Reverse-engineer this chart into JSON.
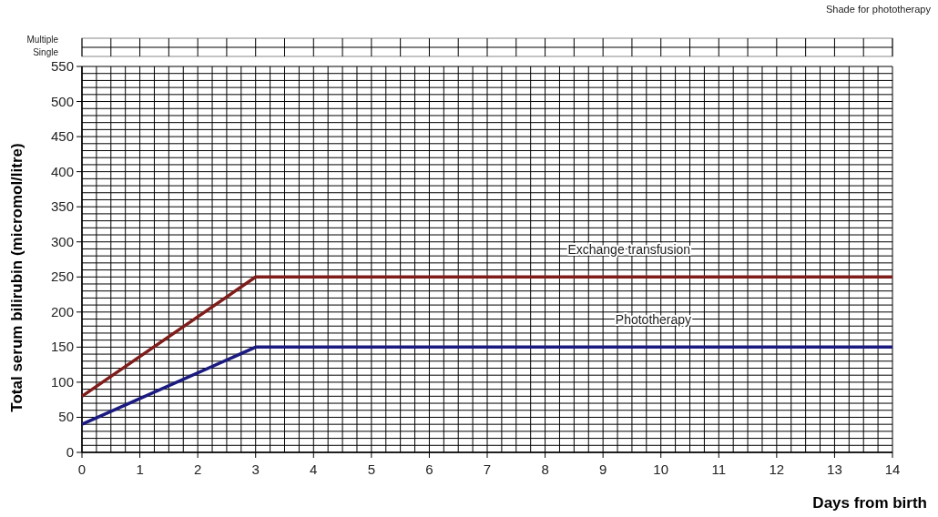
{
  "chart_data": {
    "type": "line",
    "xlabel": "Days from birth",
    "ylabel": "Total serum bilirubin  (micromol/litre)",
    "annotations": [
      "Shade for phototherapy",
      "Multiple",
      "Single"
    ],
    "x": [
      0,
      3,
      14
    ],
    "series": [
      {
        "name": "Exchange transfusion",
        "color": "#7f1d1a",
        "values": [
          80,
          250,
          250
        ]
      },
      {
        "name": "Phototherapy",
        "color": "#1a1a80",
        "values": [
          40,
          150,
          150
        ]
      }
    ],
    "xlim": [
      0,
      14
    ],
    "ylim": [
      0,
      550
    ],
    "xticks": [
      0,
      {
        "value": 0.25,
        "label": null
      },
      {
        "value": 0.5,
        "label": null
      },
      {
        "value": 0.75,
        "label": null
      },
      1,
      {
        "value": 1.25,
        "label": null
      },
      {
        "value": 1.5,
        "label": null
      },
      {
        "value": 1.75,
        "label": null
      },
      2,
      {
        "value": 2.25,
        "label": null
      },
      {
        "value": 2.5,
        "label": null
      },
      {
        "value": 2.75,
        "label": null
      },
      3,
      {
        "value": 3.25,
        "label": null
      },
      {
        "value": 3.5,
        "label": null
      },
      {
        "value": 3.75,
        "label": null
      },
      4,
      {
        "value": 4.25,
        "label": null
      },
      {
        "value": 4.5,
        "label": null
      },
      {
        "value": 4.75,
        "label": null
      },
      5,
      {
        "value": 5.25,
        "label": null
      },
      {
        "value": 5.5,
        "label": null
      },
      {
        "value": 5.75,
        "label": null
      },
      6,
      {
        "value": 6.25,
        "label": null
      },
      {
        "value": 6.5,
        "label": null
      },
      {
        "value": 6.75,
        "label": null
      },
      7,
      {
        "value": 7.25,
        "label": null
      },
      {
        "value": 7.5,
        "label": null
      },
      {
        "value": 7.75,
        "label": null
      },
      8,
      {
        "value": 8.25,
        "label": null
      },
      {
        "value": 8.5,
        "label": null
      },
      {
        "value": 8.75,
        "label": null
      },
      9,
      {
        "value": 9.25,
        "label": null
      },
      {
        "value": 9.5,
        "label": null
      },
      {
        "value": 9.75,
        "label": null
      },
      10,
      {
        "value": 10.25,
        "label": null
      },
      {
        "value": 10.5,
        "label": null
      },
      {
        "value": 10.75,
        "label": null
      },
      11,
      {
        "value": 11.25,
        "label": null
      },
      {
        "value": 11.5,
        "label": null
      },
      {
        "value": 11.75,
        "label": null
      },
      12,
      {
        "value": 12.25,
        "label": null
      },
      {
        "value": 12.5,
        "label": null
      },
      {
        "value": 12.75,
        "label": null
      },
      13,
      {
        "value": 13.25,
        "label": null
      },
      {
        "value": 13.5,
        "label": null
      },
      {
        "value": 13.75,
        "label": null
      },
      14
    ],
    "yticks": [
      0,
      {
        "value": 10,
        "label": null
      },
      {
        "value": 20,
        "label": null
      },
      {
        "value": 30,
        "label": null
      },
      {
        "value": 40,
        "label": null
      },
      50,
      {
        "value": 60,
        "label": null
      },
      {
        "value": 70,
        "label": null
      },
      {
        "value": 80,
        "label": null
      },
      {
        "value": 90,
        "label": null
      },
      100,
      {
        "value": 110,
        "label": null
      },
      {
        "value": 120,
        "label": null
      },
      {
        "value": 130,
        "label": null
      },
      {
        "value": 140,
        "label": null
      },
      150,
      {
        "value": 160,
        "label": null
      },
      {
        "value": 170,
        "label": null
      },
      {
        "value": 180,
        "label": null
      },
      {
        "value": 190,
        "label": null
      },
      200,
      {
        "value": 210,
        "label": null
      },
      {
        "value": 220,
        "label": null
      },
      {
        "value": 230,
        "label": null
      },
      {
        "value": 240,
        "label": null
      },
      250,
      {
        "value": 260,
        "label": null
      },
      {
        "value": 270,
        "label": null
      },
      {
        "value": 280,
        "label": null
      },
      {
        "value": 290,
        "label": null
      },
      300,
      {
        "value": 310,
        "label": null
      },
      {
        "value": 320,
        "label": null
      },
      {
        "value": 330,
        "label": null
      },
      {
        "value": 340,
        "label": null
      },
      350,
      {
        "value": 360,
        "label": null
      },
      {
        "value": 370,
        "label": null
      },
      {
        "value": 380,
        "label": null
      },
      {
        "value": 390,
        "label": null
      },
      400,
      {
        "value": 410,
        "label": null
      },
      {
        "value": 420,
        "label": null
      },
      {
        "value": 430,
        "label": null
      },
      {
        "value": 440,
        "label": null
      },
      450,
      {
        "value": 460,
        "label": null
      },
      {
        "value": 470,
        "label": null
      },
      {
        "value": 480,
        "label": null
      },
      {
        "value": 490,
        "label": null
      },
      500,
      {
        "value": 510,
        "label": null
      },
      {
        "value": 520,
        "label": null
      },
      {
        "value": 530,
        "label": null
      },
      {
        "value": 540,
        "label": null
      },
      550
    ],
    "grid": true,
    "marker": "none",
    "line_style": "solid"
  }
}
